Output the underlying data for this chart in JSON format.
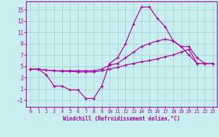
{
  "xlabel": "Windchill (Refroidissement éolien,°C)",
  "background_color": "#c8eef0",
  "grid_color": "#a0cccc",
  "line_color": "#aa00aa",
  "xlim": [
    -0.5,
    23.5
  ],
  "ylim": [
    -2.2,
    16.5
  ],
  "xticks": [
    0,
    1,
    2,
    3,
    4,
    5,
    6,
    7,
    8,
    9,
    10,
    11,
    12,
    13,
    14,
    15,
    16,
    17,
    18,
    19,
    20,
    21,
    22,
    23
  ],
  "yticks": [
    -1,
    1,
    3,
    5,
    7,
    9,
    11,
    13,
    15
  ],
  "line1_x": [
    0,
    1,
    2,
    3,
    4,
    5,
    6,
    7,
    8,
    9,
    10,
    11,
    12,
    13,
    14,
    15,
    16,
    17,
    18,
    19,
    20,
    21,
    22,
    23
  ],
  "line1_y": [
    4.5,
    4.5,
    3.5,
    1.5,
    1.5,
    0.8,
    0.8,
    -0.7,
    -0.7,
    1.5,
    5.5,
    6.5,
    9.0,
    12.5,
    15.5,
    15.5,
    13.5,
    12.0,
    9.5,
    8.5,
    7.0,
    5.5,
    5.5,
    5.5
  ],
  "line2_x": [
    0,
    1,
    2,
    3,
    4,
    5,
    6,
    7,
    8,
    9,
    10,
    11,
    12,
    13,
    14,
    15,
    16,
    17,
    18,
    19,
    20,
    21,
    22,
    23
  ],
  "line2_y": [
    4.5,
    4.5,
    4.3,
    4.2,
    4.2,
    4.2,
    4.2,
    4.2,
    4.2,
    4.5,
    5.2,
    5.5,
    6.5,
    7.5,
    8.5,
    9.0,
    9.5,
    9.8,
    9.5,
    8.5,
    8.5,
    6.5,
    5.5,
    5.5
  ],
  "line3_x": [
    0,
    1,
    2,
    3,
    4,
    5,
    6,
    7,
    8,
    9,
    10,
    11,
    12,
    13,
    14,
    15,
    16,
    17,
    18,
    19,
    20,
    21,
    22,
    23
  ],
  "line3_y": [
    4.5,
    4.5,
    4.3,
    4.2,
    4.1,
    4.1,
    4.0,
    4.0,
    4.0,
    4.2,
    4.5,
    4.8,
    5.2,
    5.5,
    5.8,
    6.0,
    6.3,
    6.7,
    7.0,
    7.5,
    8.0,
    5.5,
    5.5,
    5.5
  ]
}
